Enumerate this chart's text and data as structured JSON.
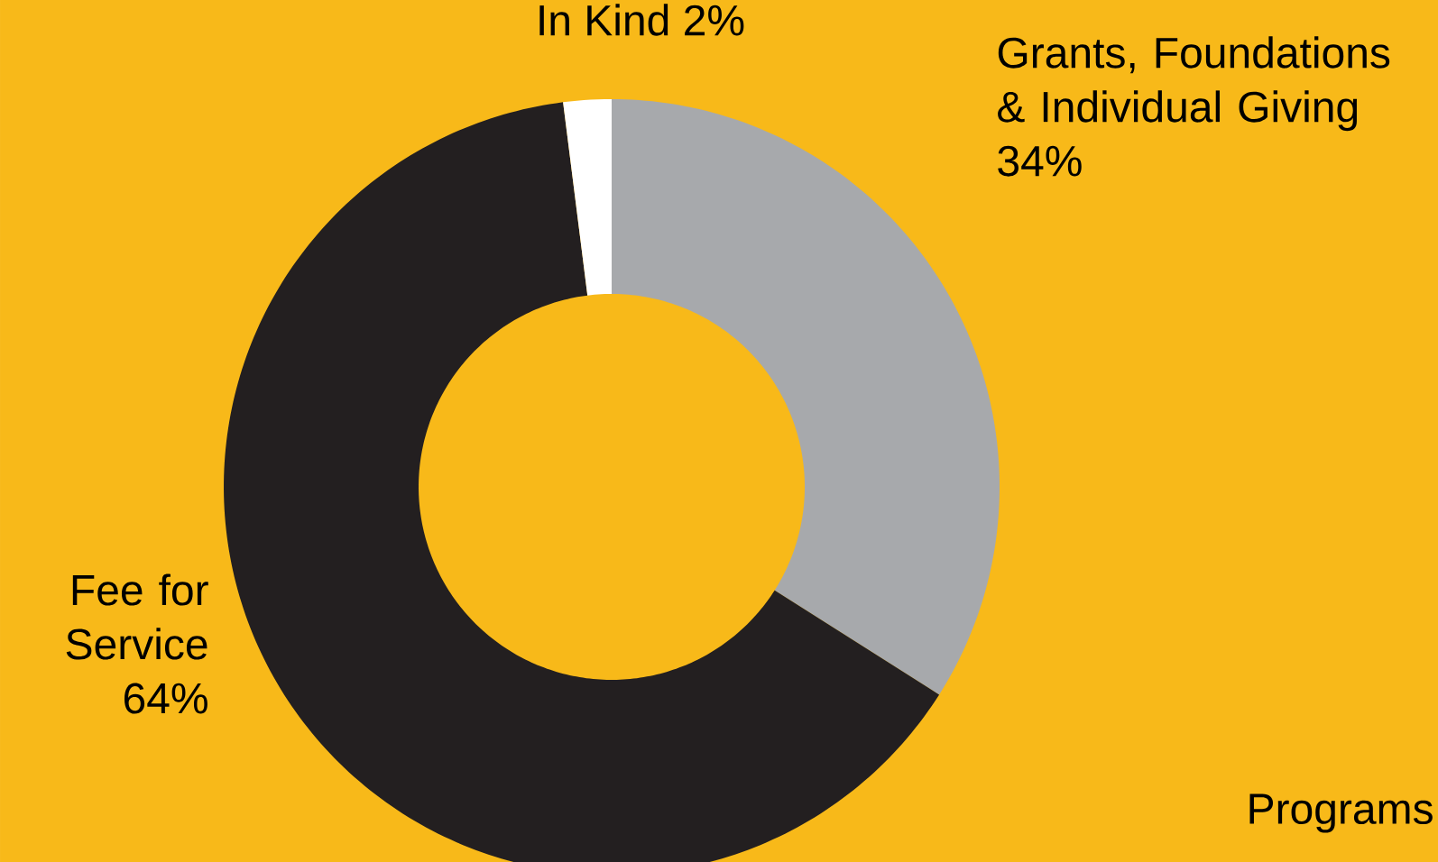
{
  "chart_data": {
    "type": "donut",
    "categories": [
      "Grants, Foundations & Individual Giving",
      "Fee for Service",
      "In Kind"
    ],
    "values": [
      34,
      64,
      2
    ],
    "value_labels": [
      "34%",
      "64%",
      "2%"
    ],
    "colors": [
      "#a7a9ac",
      "#231f20",
      "#ffffff"
    ],
    "annotations": [
      "Programs"
    ]
  }
}
